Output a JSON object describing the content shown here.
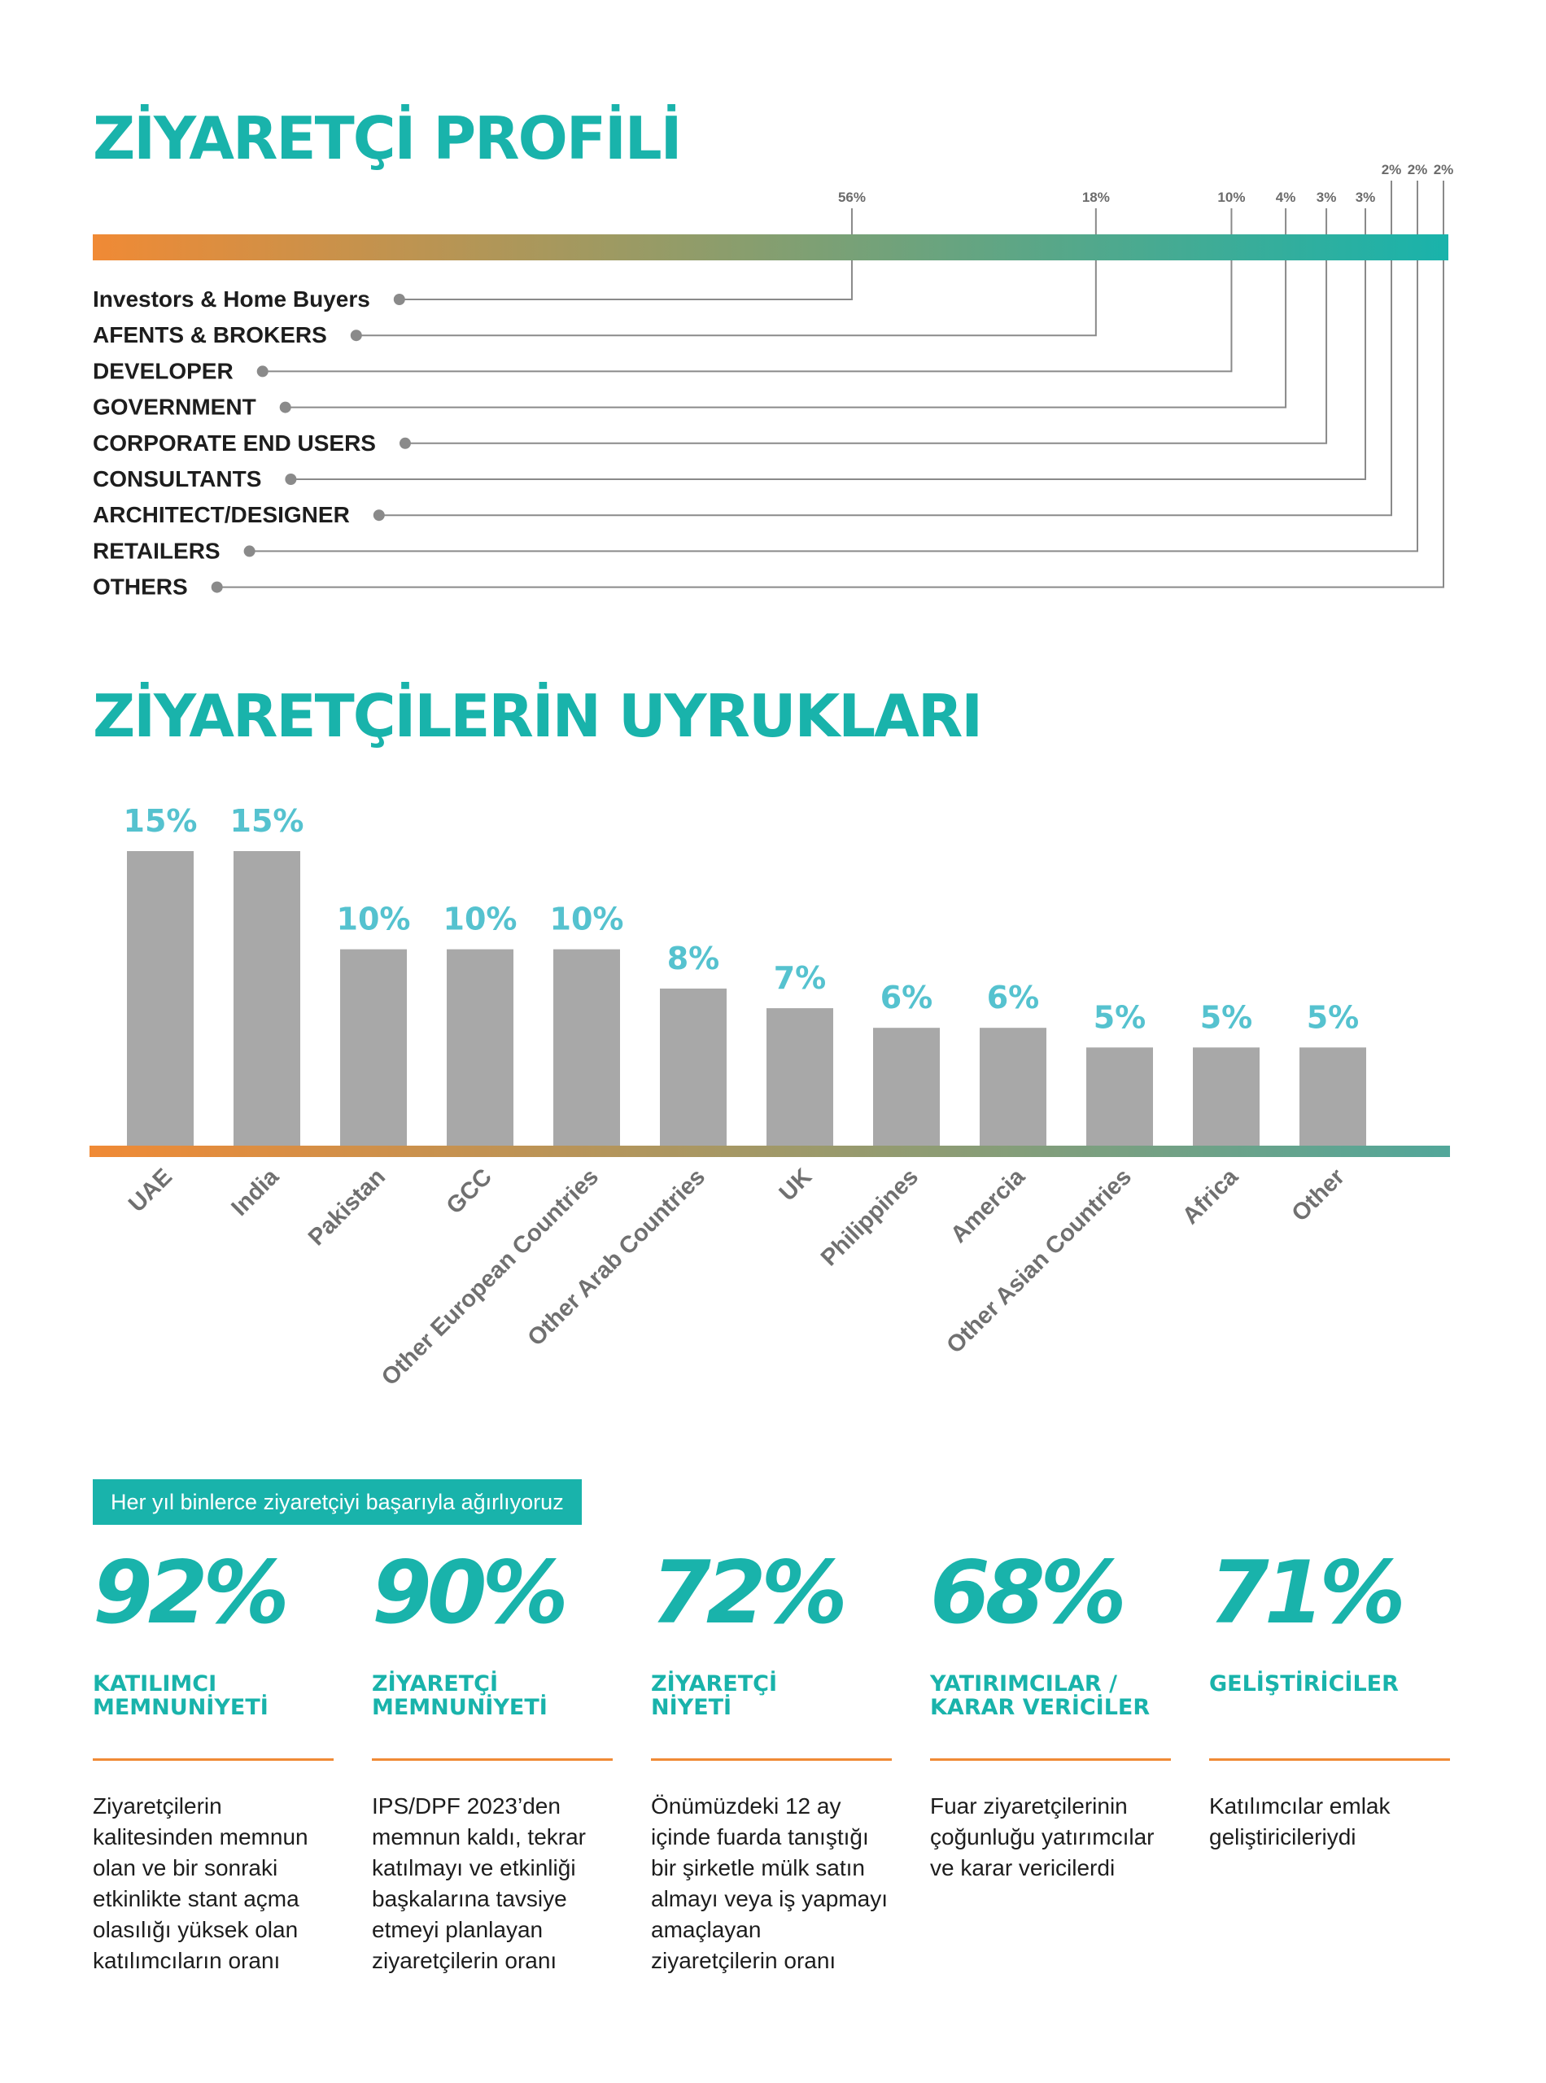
{
  "colors": {
    "accent": "#19b3ab",
    "orange": "#f08a35",
    "bar": "#a8a8a8",
    "grey_text": "#6b6b6b",
    "connector": "#8a8a8a"
  },
  "profile": {
    "title": "ZİYARETÇİ PROFİLİ"
  },
  "nationalities": {
    "title": "ZİYARETÇİLERİN UYRUKLARI"
  },
  "chart_data": [
    {
      "type": "bar",
      "orientation": "horizontal-stacked-100",
      "title": "ZİYARETÇİ PROFİLİ",
      "categories": [
        "Investors & Home Buyers",
        "AFENTS & BROKERS",
        "DEVELOPER",
        "GOVERNMENT",
        "CORPORATE END USERS",
        "CONSULTANTS",
        "ARCHITECT/DESIGNER",
        "RETAILERS",
        "OTHERS"
      ],
      "values": [
        56,
        18,
        10,
        4,
        3,
        3,
        2,
        2,
        2
      ],
      "value_labels": [
        "56%",
        "18%",
        "10%",
        "4%",
        "3%",
        "3%",
        "2%",
        "2%",
        "2%"
      ],
      "unit": "%"
    },
    {
      "type": "bar",
      "title": "ZİYARETÇİLERİN UYRUKLARI",
      "categories": [
        "UAE",
        "India",
        "Pakistan",
        "GCC",
        "Other European Countries",
        "Other Arab Countries",
        "UK",
        "Philippines",
        "Amercia",
        "Other Asian Countries",
        "Africa",
        "Other"
      ],
      "values": [
        15,
        15,
        10,
        10,
        10,
        8,
        7,
        6,
        6,
        5,
        5,
        5
      ],
      "value_labels": [
        "15%",
        "15%",
        "10%",
        "10%",
        "10%",
        "8%",
        "7%",
        "6%",
        "6%",
        "5%",
        "5%",
        "5%"
      ],
      "ylim": [
        0,
        15
      ],
      "unit": "%"
    }
  ],
  "highlights": {
    "tag": "Her yıl binlerce ziyaretçiyi başarıyla ağırlıyoruz",
    "stats": [
      {
        "value": "92%",
        "label": "KATILIMCI\nMEMNUNİYETİ",
        "description": "Ziyaretçilerin kalitesinden memnun olan ve bir sonraki etkinlikte stant açma olasılığı yüksek olan katılımcıların oranı"
      },
      {
        "value": "90%",
        "label": "ZİYARETÇİ\nMEMNUNİYETİ",
        "description": "IPS/DPF 2023’den memnun kaldı, tekrar katılmayı ve etkinliği başkalarına tavsiye etmeyi planlayan ziyaretçilerin oranı"
      },
      {
        "value": "72%",
        "label": "ZİYARETÇİ\nNİYETİ",
        "description": "Önümüzdeki 12 ay içinde fuarda tanıştığı bir şirketle mülk satın almayı veya iş yapmayı amaçlayan ziyaretçilerin oranı"
      },
      {
        "value": "68%",
        "label": "YATIRIMCILAR /\nKARAR VERİCİLER",
        "description": "Fuar ziyaretçilerinin çoğunluğu yatırımcılar ve karar vericilerdi"
      },
      {
        "value": "71%",
        "label": "GELİŞTİRİCİLER",
        "description": "Katılımcılar emlak geliştiricileriydi"
      }
    ]
  }
}
